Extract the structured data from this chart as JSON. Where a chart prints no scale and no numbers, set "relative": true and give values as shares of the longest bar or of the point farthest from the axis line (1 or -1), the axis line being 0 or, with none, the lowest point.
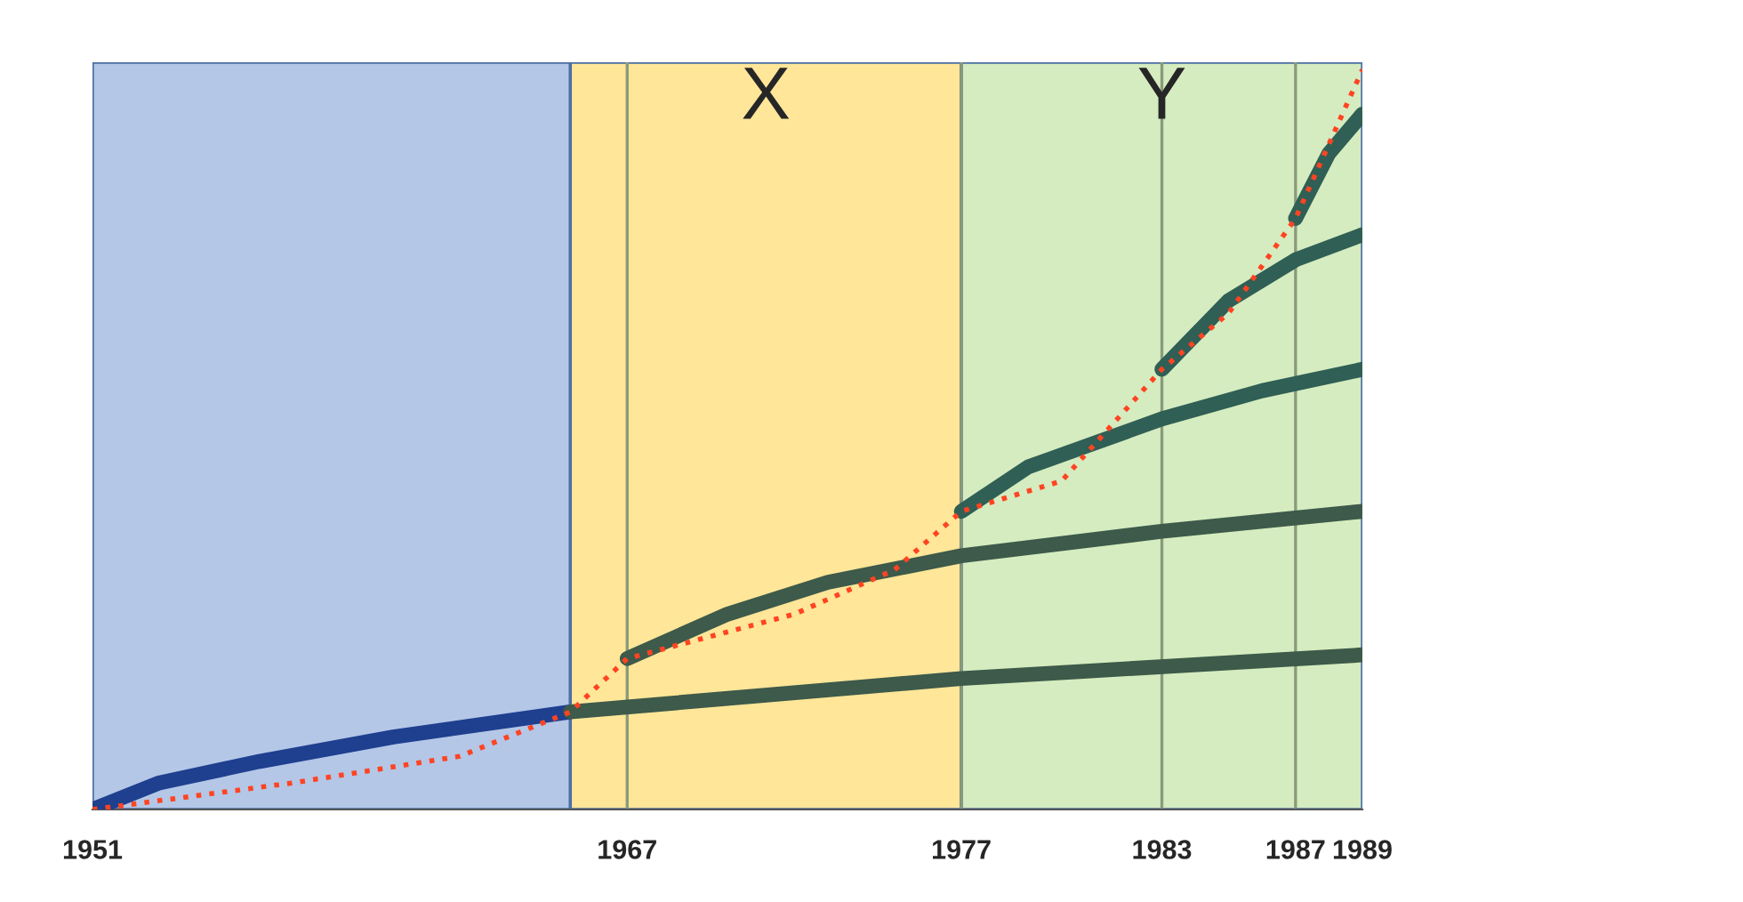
{
  "chart_data": {
    "type": "line",
    "relative": true,
    "xlim": [
      1951,
      1989
    ],
    "xticks": [
      1951,
      1967,
      1977,
      1983,
      1987,
      1989
    ],
    "bands": [
      {
        "axis": "x",
        "from": 1951,
        "to": 1965.3,
        "label": null,
        "color": "#b4c7e7"
      },
      {
        "axis": "x",
        "from": 1965.3,
        "to": 1977,
        "label": "X",
        "color": "#ffe699"
      },
      {
        "axis": "x",
        "from": 1977,
        "to": 1989,
        "label": "Y",
        "color": "#d5ecc0"
      }
    ],
    "ref_lines": [
      {
        "axis": "x",
        "value": 1967,
        "label": null,
        "color": "#8a9a7a"
      },
      {
        "axis": "x",
        "value": 1977,
        "label": null,
        "color": "#8a9a7a"
      },
      {
        "axis": "x",
        "value": 1983,
        "label": null,
        "color": "#8a9a7a"
      },
      {
        "axis": "x",
        "value": 1987,
        "label": null,
        "color": "#8a9a7a"
      }
    ],
    "series": [
      {
        "color": "#1f3f8f",
        "x": [
          1951,
          1953,
          1956,
          1960,
          1965.3
        ],
        "values": [
          0,
          0.036,
          0.065,
          0.098,
          0.132
        ]
      },
      {
        "color": "#3d5a4a",
        "x": [
          1965.3,
          1977,
          1989
        ],
        "values": [
          0.132,
          0.177,
          0.209
        ]
      },
      {
        "color": "#3d5a4a",
        "x": [
          1967,
          1970,
          1973,
          1977,
          1983,
          1989
        ],
        "values": [
          0.204,
          0.264,
          0.307,
          0.343,
          0.376,
          0.403
        ]
      },
      {
        "color": "#2f5f55",
        "x": [
          1977,
          1979,
          1983,
          1986,
          1989
        ],
        "values": [
          0.403,
          0.463,
          0.528,
          0.566,
          0.595
        ]
      },
      {
        "color": "#2f5f55",
        "x": [
          1983,
          1985,
          1987,
          1989
        ],
        "values": [
          0.595,
          0.688,
          0.743,
          0.777
        ]
      },
      {
        "color": "#2f5f55",
        "x": [
          1987,
          1988,
          1989
        ],
        "values": [
          0.799,
          0.887,
          0.94
        ]
      },
      {
        "color": "#ff4422",
        "line_style": "dotted",
        "x": [
          1951,
          1957,
          1962,
          1965.3,
          1967,
          1972,
          1975,
          1977,
          1980,
          1983,
          1985,
          1987,
          1989
        ],
        "values": [
          0,
          0.036,
          0.072,
          0.132,
          0.204,
          0.264,
          0.324,
          0.403,
          0.444,
          0.595,
          0.671,
          0.799,
          1.0
        ]
      }
    ],
    "grid": false,
    "legend": false
  }
}
